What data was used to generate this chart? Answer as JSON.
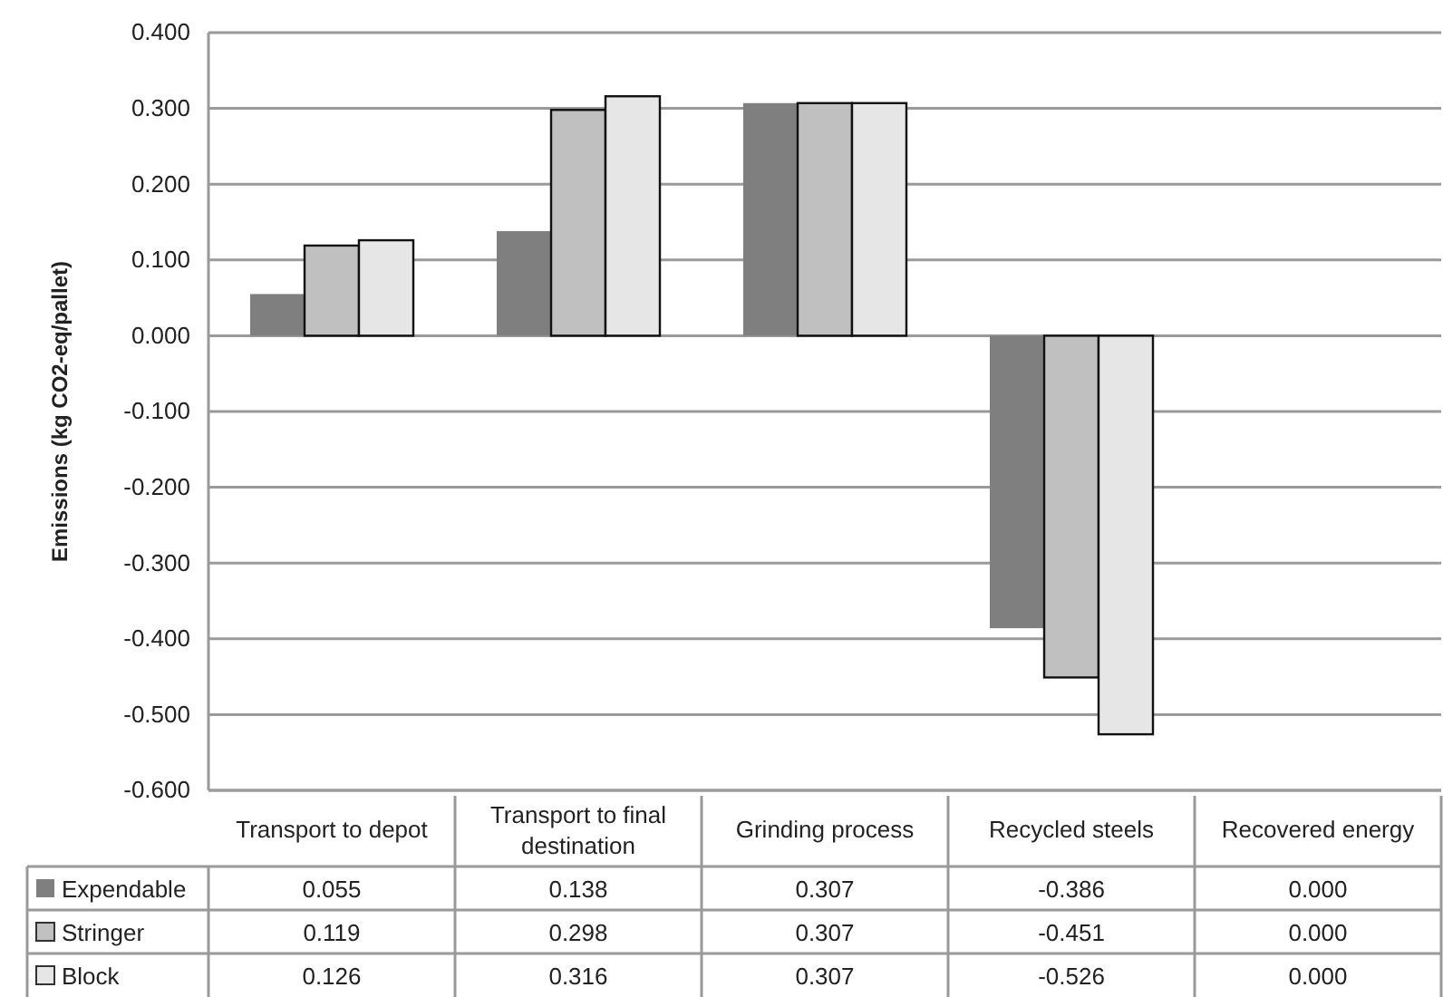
{
  "chart_data": {
    "type": "bar",
    "ylabel": "Emissions (kg CO2-eq/pallet)",
    "categories": [
      "Transport to depot",
      "Transport to final destination",
      "Grinding process",
      "Recycled steels",
      "Recovered energy"
    ],
    "series": [
      {
        "name": "Expendable",
        "color": "#7f7f7f",
        "values": [
          0.055,
          0.138,
          0.307,
          -0.386,
          0.0
        ],
        "value_labels": [
          "0.055",
          "0.138",
          "0.307",
          "-0.386",
          "0.000"
        ]
      },
      {
        "name": "Stringer",
        "color": "#c0c0c0",
        "values": [
          0.119,
          0.298,
          0.307,
          -0.451,
          0.0
        ],
        "value_labels": [
          "0.119",
          "0.298",
          "0.307",
          "-0.451",
          "0.000"
        ]
      },
      {
        "name": "Block",
        "color": "#e6e6e6",
        "values": [
          0.126,
          0.316,
          0.307,
          -0.526,
          0.0
        ],
        "value_labels": [
          "0.126",
          "0.316",
          "0.307",
          "-0.526",
          "0.000"
        ]
      }
    ],
    "ylim": [
      -0.6,
      0.4
    ],
    "yticks": [
      {
        "value": -0.6,
        "label": "-0.600"
      },
      {
        "value": -0.5,
        "label": "-0.500"
      },
      {
        "value": -0.4,
        "label": "-0.400"
      },
      {
        "value": -0.3,
        "label": "-0.300"
      },
      {
        "value": -0.2,
        "label": "-0.200"
      },
      {
        "value": -0.1,
        "label": "-0.100"
      },
      {
        "value": 0,
        "label": "0.000"
      },
      {
        "value": 0.1,
        "label": "0.100"
      },
      {
        "value": 0.2,
        "label": "0.200"
      },
      {
        "value": 0.3,
        "label": "0.300"
      },
      {
        "value": 0.4,
        "label": "0.400"
      }
    ],
    "grid": "y",
    "legend": "bottom"
  }
}
